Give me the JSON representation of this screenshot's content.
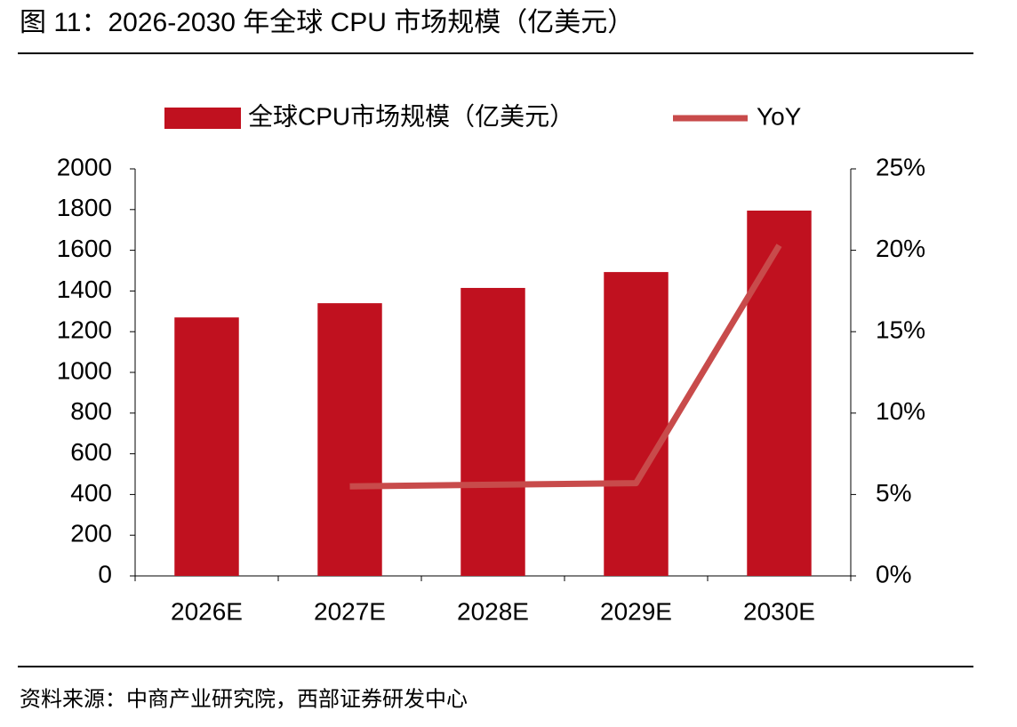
{
  "chart_data": {
    "type": "bar_line",
    "title": "图 11：2026-2030 年全球 CPU 市场规模（亿美元）",
    "source": "资料来源：中商产业研究院，西部证券研发中心",
    "categories": [
      "2026E",
      "2027E",
      "2028E",
      "2029E",
      "2030E"
    ],
    "series": [
      {
        "name": "全球CPU市场规模（亿美元）",
        "type": "bar",
        "color": "#c0111f",
        "values": [
          1270,
          1340,
          1415,
          1493,
          1795
        ]
      },
      {
        "name": "YoY",
        "type": "line",
        "axis": "y2",
        "color": "#c84b4b",
        "values": [
          null,
          5.5,
          5.6,
          5.7,
          20.3
        ]
      }
    ],
    "ylim": [
      0,
      2000
    ],
    "yticks": [
      0,
      200,
      400,
      600,
      800,
      1000,
      1200,
      1400,
      1600,
      1800,
      2000
    ],
    "y2lim": [
      0,
      25
    ],
    "y2ticks": [
      {
        "value": 0,
        "label": "0%"
      },
      {
        "value": 5,
        "label": "5%"
      },
      {
        "value": 10,
        "label": "10%"
      },
      {
        "value": 15,
        "label": "15%"
      },
      {
        "value": 20,
        "label": "20%"
      },
      {
        "value": 25,
        "label": "25%"
      }
    ],
    "grid": false,
    "legend": "top"
  }
}
